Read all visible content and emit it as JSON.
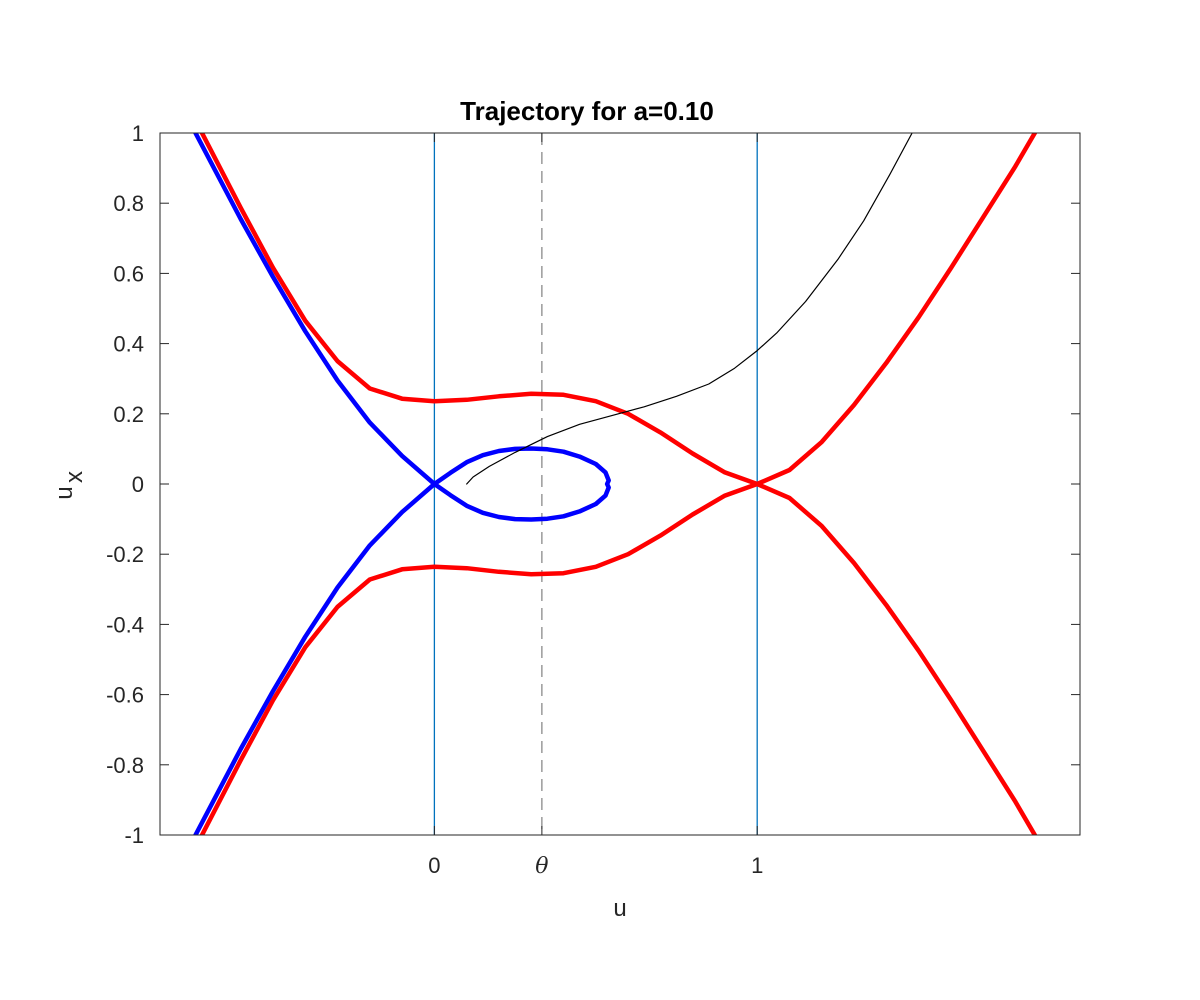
{
  "chart_data": {
    "type": "line",
    "title": "Trajectory for a=0.10",
    "xlabel": "u",
    "ylabel_main": "u",
    "ylabel_sub": "x",
    "xlim": [
      -0.85,
      2.0
    ],
    "ylim": [
      -1,
      1
    ],
    "xticks": [
      {
        "value": 0,
        "label": "0"
      },
      {
        "value": 0.333,
        "label": "θ",
        "italic": true
      },
      {
        "value": 1,
        "label": "1"
      }
    ],
    "yticks": [
      {
        "value": 1,
        "label": "1"
      },
      {
        "value": 0.8,
        "label": "0.8"
      },
      {
        "value": 0.6,
        "label": "0.6"
      },
      {
        "value": 0.4,
        "label": "0.4"
      },
      {
        "value": 0.2,
        "label": "0.2"
      },
      {
        "value": 0,
        "label": "0"
      },
      {
        "value": -0.2,
        "label": "-0.2"
      },
      {
        "value": -0.4,
        "label": "-0.4"
      },
      {
        "value": -0.6,
        "label": "-0.6"
      },
      {
        "value": -0.8,
        "label": "-0.8"
      },
      {
        "value": -1,
        "label": "-1"
      }
    ],
    "vlines": [
      {
        "x": 0,
        "color": "#0072BD",
        "style": "solid"
      },
      {
        "x": 0.333,
        "color": "#808080",
        "style": "dashed"
      },
      {
        "x": 1,
        "color": "#0072BD",
        "style": "solid"
      }
    ],
    "grid": false,
    "series": [
      {
        "color": "#FF0000",
        "width": 4.5,
        "points": [
          [
            -0.72,
            1.0
          ],
          [
            -0.6,
            0.787
          ],
          [
            -0.5,
            0.616
          ],
          [
            -0.4,
            0.465
          ],
          [
            -0.3,
            0.35
          ],
          [
            -0.2,
            0.272
          ],
          [
            -0.1,
            0.243
          ],
          [
            0,
            0.236
          ],
          [
            0.1,
            0.24
          ],
          [
            0.2,
            0.25
          ],
          [
            0.3,
            0.257
          ],
          [
            0.4,
            0.254
          ],
          [
            0.5,
            0.236
          ],
          [
            0.6,
            0.2
          ],
          [
            0.7,
            0.147
          ],
          [
            0.8,
            0.087
          ],
          [
            0.9,
            0.033
          ],
          [
            1.0,
            0.0
          ],
          [
            1.1,
            -0.04
          ],
          [
            1.2,
            -0.12
          ],
          [
            1.3,
            -0.225
          ],
          [
            1.4,
            -0.345
          ],
          [
            1.5,
            -0.475
          ],
          [
            1.6,
            -0.615
          ],
          [
            1.7,
            -0.76
          ],
          [
            1.8,
            -0.905
          ],
          [
            1.86,
            -1.0
          ]
        ]
      },
      {
        "color": "#FF0000",
        "width": 4.5,
        "points": [
          [
            -0.72,
            -1.0
          ],
          [
            -0.6,
            -0.787
          ],
          [
            -0.5,
            -0.616
          ],
          [
            -0.4,
            -0.465
          ],
          [
            -0.3,
            -0.35
          ],
          [
            -0.2,
            -0.272
          ],
          [
            -0.1,
            -0.243
          ],
          [
            0,
            -0.236
          ],
          [
            0.1,
            -0.24
          ],
          [
            0.2,
            -0.25
          ],
          [
            0.3,
            -0.257
          ],
          [
            0.4,
            -0.254
          ],
          [
            0.5,
            -0.236
          ],
          [
            0.6,
            -0.2
          ],
          [
            0.7,
            -0.147
          ],
          [
            0.8,
            -0.087
          ],
          [
            0.9,
            -0.033
          ],
          [
            1.0,
            0.0
          ],
          [
            1.1,
            0.04
          ],
          [
            1.2,
            0.12
          ],
          [
            1.3,
            0.225
          ],
          [
            1.4,
            0.345
          ],
          [
            1.5,
            0.475
          ],
          [
            1.6,
            0.615
          ],
          [
            1.7,
            0.76
          ],
          [
            1.8,
            0.905
          ],
          [
            1.86,
            1.0
          ]
        ]
      },
      {
        "color": "#0000FF",
        "width": 4.5,
        "points": [
          [
            -0.74,
            1.0
          ],
          [
            -0.6,
            0.755
          ],
          [
            -0.5,
            0.59
          ],
          [
            -0.4,
            0.435
          ],
          [
            -0.3,
            0.295
          ],
          [
            -0.2,
            0.175
          ],
          [
            -0.1,
            0.08
          ],
          [
            0,
            0.0
          ],
          [
            0.05,
            -0.032
          ],
          [
            0.1,
            -0.062
          ],
          [
            0.15,
            -0.082
          ],
          [
            0.2,
            -0.094
          ],
          [
            0.25,
            -0.1
          ],
          [
            0.3,
            -0.101
          ],
          [
            0.35,
            -0.099
          ],
          [
            0.4,
            -0.092
          ],
          [
            0.45,
            -0.078
          ],
          [
            0.5,
            -0.057
          ],
          [
            0.53,
            -0.033
          ],
          [
            0.54,
            -0.01
          ],
          [
            0.535,
            0.0
          ],
          [
            0.54,
            0.01
          ],
          [
            0.53,
            0.033
          ],
          [
            0.5,
            0.057
          ],
          [
            0.45,
            0.078
          ],
          [
            0.4,
            0.092
          ],
          [
            0.35,
            0.099
          ],
          [
            0.3,
            0.101
          ],
          [
            0.25,
            0.1
          ],
          [
            0.2,
            0.094
          ],
          [
            0.15,
            0.082
          ],
          [
            0.1,
            0.062
          ],
          [
            0.05,
            0.032
          ],
          [
            0,
            0.0
          ],
          [
            -0.1,
            -0.08
          ],
          [
            -0.2,
            -0.175
          ],
          [
            -0.3,
            -0.295
          ],
          [
            -0.4,
            -0.435
          ],
          [
            -0.5,
            -0.59
          ],
          [
            -0.6,
            -0.755
          ],
          [
            -0.74,
            -1.0
          ]
        ]
      },
      {
        "color": "#000000",
        "width": 1.2,
        "points": [
          [
            0.1,
            0.0
          ],
          [
            0.12,
            0.02
          ],
          [
            0.17,
            0.05
          ],
          [
            0.25,
            0.09
          ],
          [
            0.35,
            0.135
          ],
          [
            0.45,
            0.17
          ],
          [
            0.55,
            0.195
          ],
          [
            0.65,
            0.22
          ],
          [
            0.75,
            0.25
          ],
          [
            0.85,
            0.285
          ],
          [
            0.93,
            0.33
          ],
          [
            1.0,
            0.38
          ],
          [
            1.06,
            0.43
          ],
          [
            1.15,
            0.52
          ],
          [
            1.25,
            0.64
          ],
          [
            1.33,
            0.75
          ],
          [
            1.41,
            0.88
          ],
          [
            1.48,
            1.0
          ]
        ]
      }
    ]
  }
}
